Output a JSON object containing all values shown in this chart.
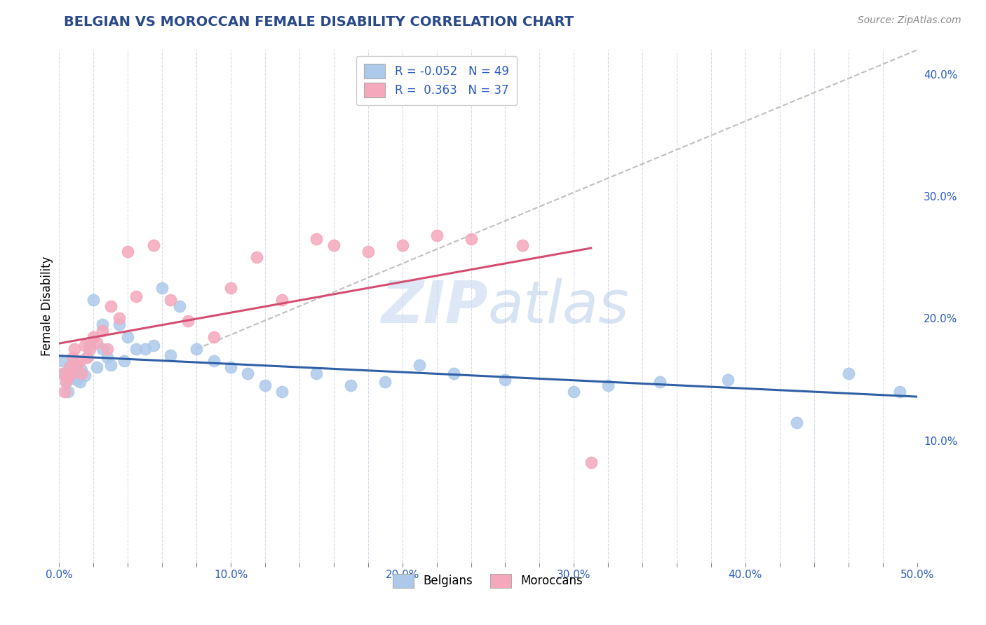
{
  "title": "BELGIAN VS MOROCCAN FEMALE DISABILITY CORRELATION CHART",
  "source": "Source: ZipAtlas.com",
  "ylabel": "Female Disability",
  "xlim": [
    0.0,
    0.5
  ],
  "ylim": [
    0.0,
    0.42
  ],
  "belgian_R": -0.052,
  "belgian_N": 49,
  "moroccan_R": 0.363,
  "moroccan_N": 37,
  "belgian_color": "#adc9ea",
  "moroccan_color": "#f5a8bc",
  "belgian_line_color": "#2f5fa5",
  "moroccan_line_color": "#d44e72",
  "background_color": "#ffffff",
  "grid_color": "#d0d8e8",
  "title_color": "#2a4a8a",
  "legend_text_color": "#2a5bbf",
  "watermark": "ZIPatlas",
  "belgians_x": [
    0.002,
    0.003,
    0.004,
    0.005,
    0.005,
    0.006,
    0.007,
    0.008,
    0.01,
    0.011,
    0.012,
    0.013,
    0.015,
    0.016,
    0.018,
    0.02,
    0.022,
    0.025,
    0.025,
    0.028,
    0.03,
    0.035,
    0.038,
    0.04,
    0.045,
    0.05,
    0.055,
    0.06,
    0.065,
    0.07,
    0.08,
    0.09,
    0.1,
    0.11,
    0.12,
    0.13,
    0.15,
    0.17,
    0.19,
    0.21,
    0.23,
    0.26,
    0.3,
    0.32,
    0.35,
    0.39,
    0.43,
    0.46,
    0.49
  ],
  "belgians_y": [
    0.165,
    0.155,
    0.148,
    0.157,
    0.14,
    0.155,
    0.152,
    0.162,
    0.15,
    0.155,
    0.148,
    0.158,
    0.153,
    0.168,
    0.178,
    0.215,
    0.16,
    0.175,
    0.195,
    0.168,
    0.162,
    0.195,
    0.165,
    0.185,
    0.175,
    0.175,
    0.178,
    0.225,
    0.17,
    0.21,
    0.175,
    0.165,
    0.16,
    0.155,
    0.145,
    0.14,
    0.155,
    0.145,
    0.148,
    0.162,
    0.155,
    0.15,
    0.14,
    0.145,
    0.148,
    0.15,
    0.115,
    0.155,
    0.14
  ],
  "moroccans_x": [
    0.002,
    0.003,
    0.004,
    0.005,
    0.006,
    0.007,
    0.008,
    0.009,
    0.01,
    0.012,
    0.013,
    0.015,
    0.016,
    0.018,
    0.02,
    0.022,
    0.025,
    0.028,
    0.03,
    0.035,
    0.04,
    0.045,
    0.055,
    0.065,
    0.075,
    0.09,
    0.1,
    0.115,
    0.13,
    0.15,
    0.16,
    0.18,
    0.2,
    0.22,
    0.24,
    0.27,
    0.31
  ],
  "moroccans_y": [
    0.155,
    0.14,
    0.148,
    0.152,
    0.16,
    0.155,
    0.168,
    0.175,
    0.162,
    0.165,
    0.155,
    0.178,
    0.168,
    0.175,
    0.185,
    0.18,
    0.19,
    0.175,
    0.21,
    0.2,
    0.255,
    0.218,
    0.26,
    0.215,
    0.198,
    0.185,
    0.225,
    0.25,
    0.215,
    0.265,
    0.26,
    0.255,
    0.26,
    0.268,
    0.265,
    0.26,
    0.082
  ],
  "dashed_line_x": [
    0.08,
    0.5
  ],
  "dashed_line_y": [
    0.175,
    0.42
  ]
}
